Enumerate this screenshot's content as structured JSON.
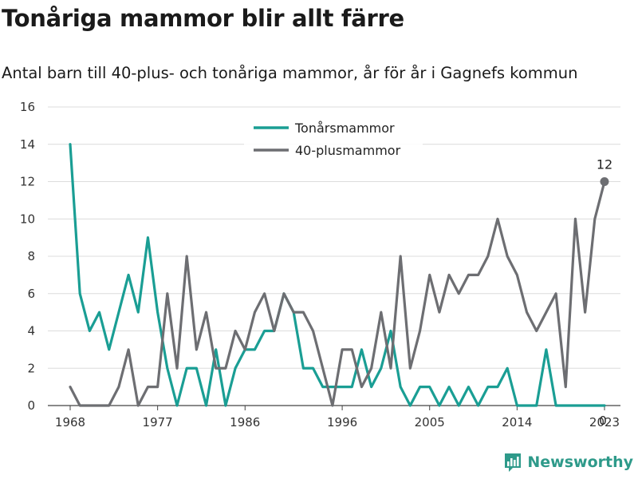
{
  "header": {
    "title": "Tonåriga mammor blir allt färre",
    "subtitle": "Antal barn till 40-plus- och tonåriga mammor, år för år i Gagnefs kommun"
  },
  "brand": {
    "name": "Newsworthy",
    "icon": "bar-chart-logo-icon",
    "color": "#2e9a8a"
  },
  "chart_data": {
    "type": "line",
    "x": [
      1968,
      1969,
      1970,
      1971,
      1972,
      1973,
      1974,
      1975,
      1976,
      1977,
      1978,
      1979,
      1980,
      1981,
      1982,
      1983,
      1984,
      1985,
      1986,
      1987,
      1988,
      1989,
      1990,
      1991,
      1992,
      1993,
      1994,
      1995,
      1996,
      1997,
      1998,
      1999,
      2000,
      2001,
      2002,
      2003,
      2004,
      2005,
      2006,
      2007,
      2008,
      2009,
      2010,
      2011,
      2012,
      2013,
      2014,
      2015,
      2016,
      2017,
      2018,
      2019,
      2020,
      2021,
      2022,
      2023
    ],
    "series": [
      {
        "name": "Tonårsmammor",
        "color": "#1a9e94",
        "values": [
          14,
          6,
          4,
          5,
          3,
          5,
          7,
          5,
          9,
          5,
          2,
          0,
          2,
          2,
          0,
          3,
          0,
          2,
          3,
          3,
          4,
          4,
          6,
          5,
          2,
          2,
          1,
          1,
          1,
          1,
          3,
          1,
          2,
          4,
          1,
          0,
          1,
          1,
          0,
          1,
          0,
          1,
          0,
          1,
          1,
          2,
          0,
          0,
          0,
          3,
          0,
          0,
          0,
          0,
          0,
          0
        ]
      },
      {
        "name": "40-plusmammor",
        "color": "#6d6e72",
        "values": [
          1,
          0,
          0,
          0,
          0,
          1,
          3,
          0,
          1,
          1,
          6,
          2,
          8,
          3,
          5,
          2,
          2,
          4,
          3,
          5,
          6,
          4,
          6,
          5,
          5,
          4,
          2,
          0,
          3,
          3,
          1,
          2,
          5,
          2,
          8,
          2,
          4,
          7,
          5,
          7,
          6,
          7,
          7,
          8,
          10,
          8,
          7,
          5,
          4,
          5,
          6,
          1,
          10,
          5,
          10,
          12
        ]
      }
    ],
    "xticks": [
      1968,
      1977,
      1986,
      1996,
      2005,
      2014,
      2023
    ],
    "xtick_labels": [
      "1968",
      "1977",
      "1986",
      "1996",
      "2005",
      "2014",
      "2023"
    ],
    "yticks": [
      0,
      2,
      4,
      6,
      8,
      10,
      12,
      14,
      16
    ],
    "ylim": [
      0,
      16
    ],
    "grid": true,
    "legend_position": "top-center",
    "end_labels": [
      "0",
      "12"
    ]
  }
}
